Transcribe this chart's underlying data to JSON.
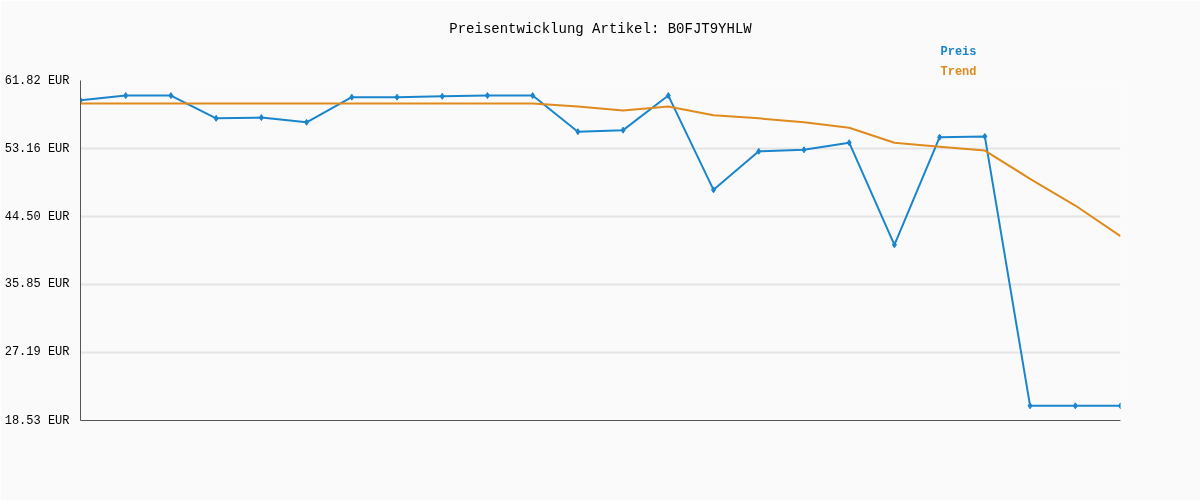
{
  "chart_data": {
    "type": "line",
    "title": "Preisentwicklung Artikel: B0FJT9YHLW",
    "categories": [
      null,
      null,
      null,
      null,
      null,
      null,
      null,
      null,
      null,
      null,
      null,
      null,
      null,
      null,
      null,
      null,
      null,
      null,
      null,
      null,
      null,
      null,
      null,
      null
    ],
    "series": [
      {
        "name": "Preis",
        "color": "#1a85cc",
        "marker": "diamond",
        "values": [
          59.3,
          59.9,
          59.9,
          57.0,
          57.1,
          56.5,
          59.7,
          59.7,
          59.8,
          59.9,
          59.9,
          55.3,
          55.5,
          59.9,
          47.9,
          52.8,
          53.0,
          53.9,
          40.9,
          54.6,
          54.7,
          20.4,
          20.4,
          20.4
        ]
      },
      {
        "name": "Trend",
        "color": "#e08a1e",
        "marker": "none",
        "values": [
          58.9,
          58.9,
          58.9,
          58.9,
          58.9,
          58.9,
          58.9,
          58.9,
          58.9,
          58.9,
          58.9,
          58.5,
          58.0,
          58.5,
          57.4,
          57.0,
          56.5,
          55.8,
          53.9,
          53.4,
          52.9,
          49.3,
          45.9,
          42.0
        ]
      }
    ],
    "ylim": [
      18.53,
      61.82
    ],
    "yticks": [
      {
        "value": 18.53,
        "label": "18.53 EUR"
      },
      {
        "value": 27.19,
        "label": "27.19 EUR"
      },
      {
        "value": 35.85,
        "label": "35.85 EUR"
      },
      {
        "value": 44.5,
        "label": "44.50 EUR"
      },
      {
        "value": 53.16,
        "label": "53.16 EUR"
      },
      {
        "value": 61.82,
        "label": "61.82 EUR"
      }
    ],
    "grid": "y",
    "tick_labels": "y",
    "line_style": "solid"
  }
}
